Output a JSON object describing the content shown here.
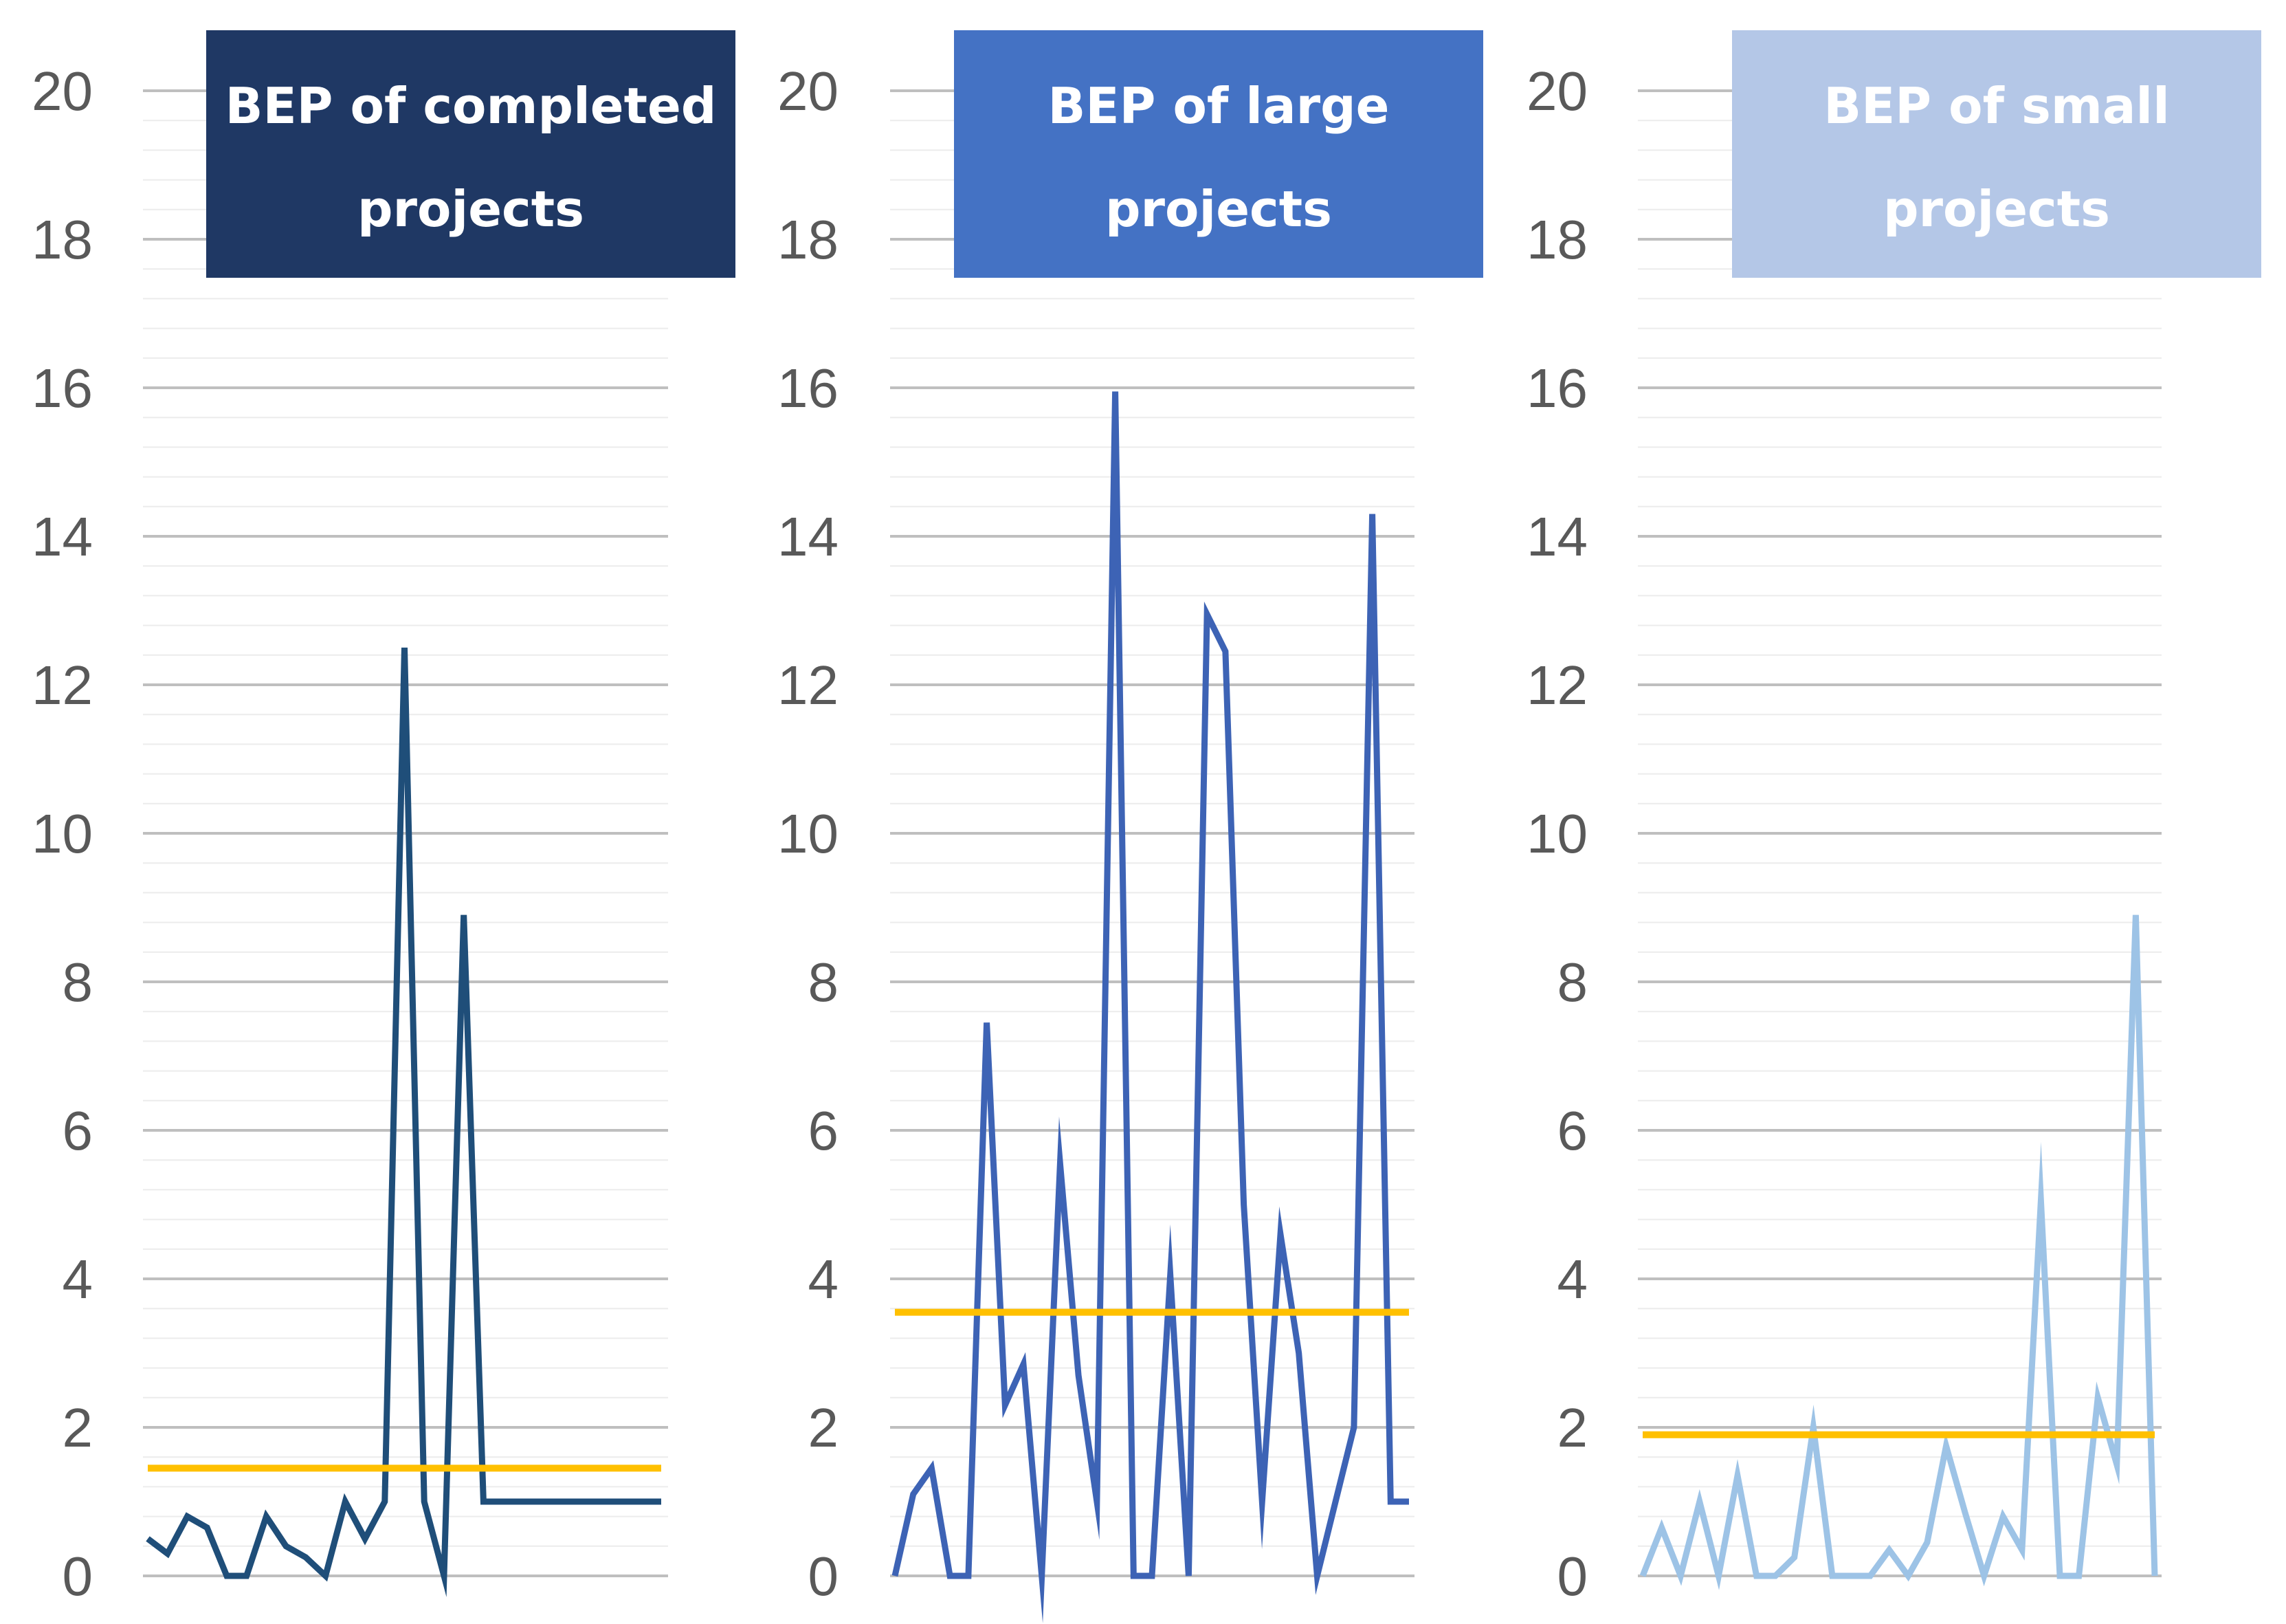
{
  "chart_data": [
    {
      "type": "line",
      "title": "BEP of completed projects",
      "title_lines": [
        "BEP of completed",
        "projects"
      ],
      "title_bg": "#1f3864",
      "title_color": "#ffffff",
      "line_color": "#1f4e79",
      "average_color": "#ffc000",
      "ylim": [
        0,
        20
      ],
      "yticks": [
        "0",
        "2",
        "4",
        "6",
        "8",
        "10",
        "12",
        "14",
        "16",
        "18",
        "20"
      ],
      "series": [
        {
          "name": "BEP",
          "values": [
            0.5,
            0.3,
            0.8,
            0.65,
            0,
            0,
            0.8,
            0.4,
            0.25,
            0,
            1.0,
            0.5,
            1.0,
            12.5,
            1.0,
            0,
            8.9,
            1.0,
            1.0,
            1.0,
            1.0,
            1.0,
            1.0,
            1.0,
            1.0,
            1.0,
            1.0
          ]
        },
        {
          "name": "Average",
          "values": [
            1.45,
            1.45
          ]
        }
      ]
    },
    {
      "type": "line",
      "title": "BEP of large projects",
      "title_lines": [
        "BEP of large",
        "projects"
      ],
      "title_bg": "#4472c4",
      "title_color": "#ffffff",
      "line_color": "#3d63b5",
      "average_color": "#ffc000",
      "ylim": [
        0,
        20
      ],
      "yticks": [
        "0",
        "2",
        "4",
        "6",
        "8",
        "10",
        "12",
        "14",
        "16",
        "18",
        "20"
      ],
      "series": [
        {
          "name": "BEP",
          "values": [
            0,
            1.1,
            1.45,
            0,
            0,
            7.45,
            2.3,
            2.85,
            0,
            5.55,
            2.7,
            1.0,
            15.95,
            0,
            0,
            4.05,
            0,
            12.95,
            12.45,
            5.0,
            1.0,
            4.6,
            3.0,
            0,
            1.0,
            2.0,
            14.3,
            1.0,
            1.0
          ]
        },
        {
          "name": "Average",
          "values": [
            3.55,
            3.55
          ]
        }
      ]
    },
    {
      "type": "line",
      "title": "BEP of small projects",
      "title_lines": [
        "BEP of small",
        "projects"
      ],
      "title_bg": "#b4c7e7",
      "title_color": "#ffffff",
      "line_color": "#9dc3e6",
      "average_color": "#ffc000",
      "ylim": [
        0,
        20
      ],
      "yticks": [
        "0",
        "2",
        "4",
        "6",
        "8",
        "10",
        "12",
        "14",
        "16",
        "18",
        "20"
      ],
      "series": [
        {
          "name": "BEP",
          "values": [
            0,
            0.65,
            0,
            1.0,
            0,
            1.35,
            0,
            0,
            0.25,
            2.0,
            0,
            0,
            0,
            0.35,
            0,
            0.45,
            1.75,
            0.85,
            0,
            0.8,
            0.35,
            5.05,
            0,
            0,
            2.4,
            1.5,
            8.9,
            0
          ]
        },
        {
          "name": "Average",
          "values": [
            1.9,
            1.9
          ]
        }
      ]
    }
  ]
}
